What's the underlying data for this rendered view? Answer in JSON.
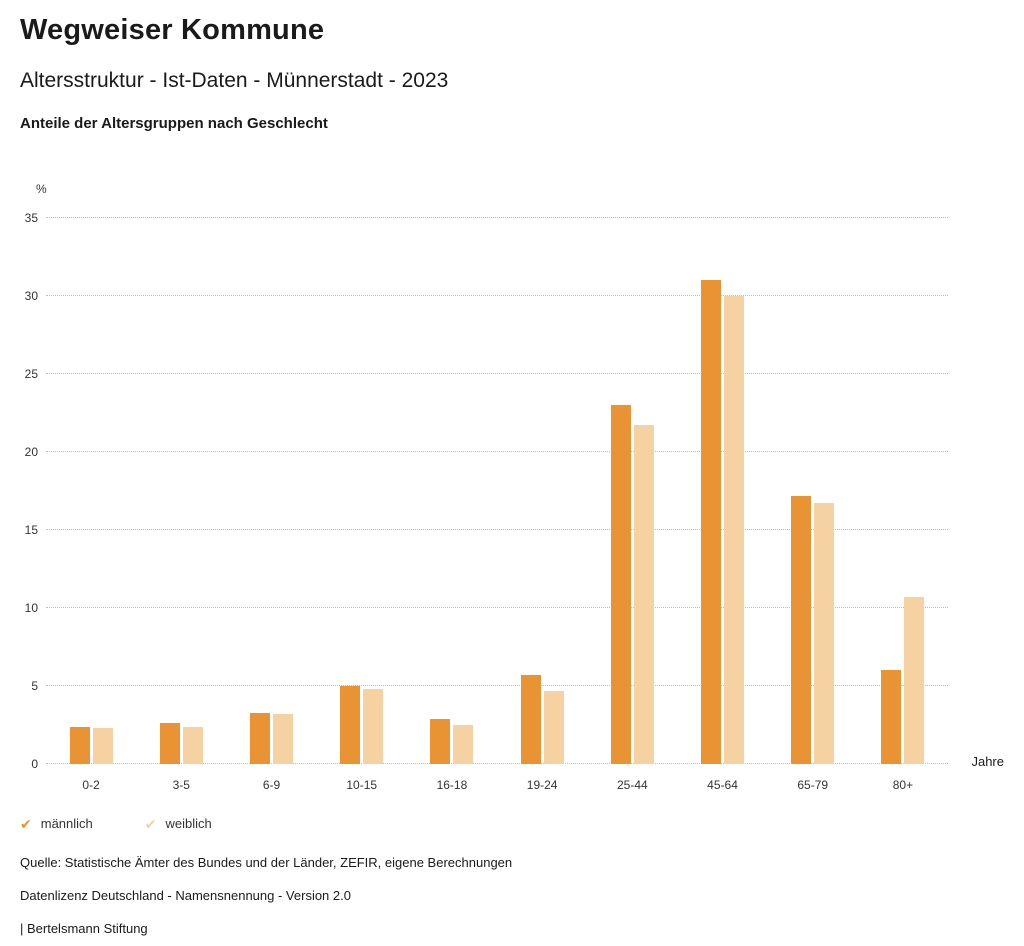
{
  "header": {
    "brand": "Wegweiser Kommune",
    "title": "Altersstruktur - Ist-Daten - Münnerstadt - 2023",
    "subtitle": "Anteile der Altersgruppen nach Geschlecht"
  },
  "chart_data": {
    "type": "bar",
    "categories": [
      "0-2",
      "3-5",
      "6-9",
      "10-15",
      "16-18",
      "19-24",
      "25-44",
      "45-64",
      "65-79",
      "80+"
    ],
    "series": [
      {
        "name": "männlich",
        "color": "#EA9334",
        "values": [
          2.4,
          2.6,
          3.3,
          5.0,
          2.9,
          5.7,
          23.0,
          31.0,
          17.2,
          6.0
        ]
      },
      {
        "name": "weiblich",
        "color": "#F6D2A2",
        "values": [
          2.3,
          2.4,
          3.2,
          4.8,
          2.5,
          4.7,
          21.7,
          30.0,
          16.7,
          10.7
        ]
      }
    ],
    "title": "Anteile der Altersgruppen nach Geschlecht",
    "xlabel": "Jahre",
    "ylabel": "%",
    "ylim": [
      0,
      35
    ],
    "yticks": [
      0,
      5,
      10,
      15,
      20,
      25,
      30,
      35
    ],
    "grid": "horizontal-dotted",
    "legend_position": "bottom-left"
  },
  "footer": {
    "source": "Quelle: Statistische Ämter des Bundes und der Länder, ZEFIR, eigene Berechnungen",
    "license": "Datenlizenz Deutschland - Namensnennung - Version 2.0",
    "attribution": "| Bertelsmann Stiftung"
  }
}
